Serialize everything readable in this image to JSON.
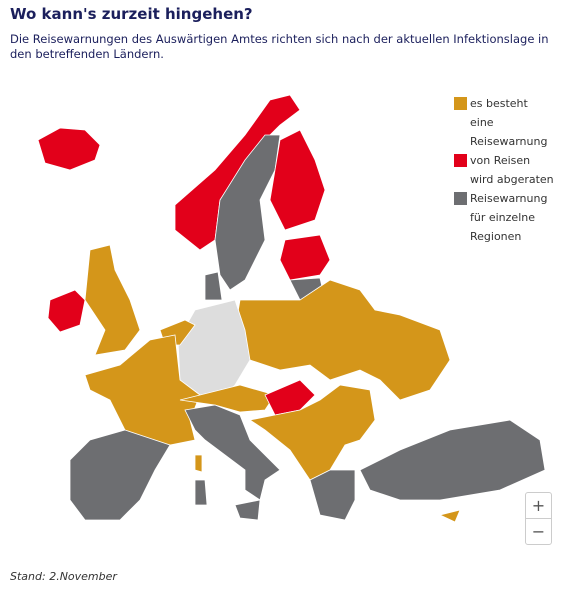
{
  "header": {
    "title": "Wo kann's zurzeit hingehen?",
    "subtitle": "Die Reisewarnungen des Auswärtigen Amtes richten sich nach der aktuellen Infektionslage in den betreffenden Ländern."
  },
  "legend": {
    "items": [
      {
        "label": "es besteht eine Reisewarnung",
        "color": "#d4961a"
      },
      {
        "label": "von Reisen wird abgeraten",
        "color": "#e2001a"
      },
      {
        "label": "Reisewarnung für einzelne Regionen",
        "color": "#6d6e71"
      }
    ]
  },
  "zoom": [
    "+",
    "−"
  ],
  "footer": "Stand: 2.November"
}
